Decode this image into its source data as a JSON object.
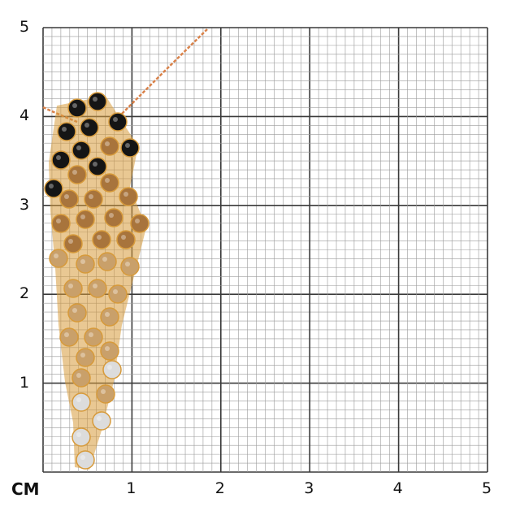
{
  "scale": {
    "unit_label": "CM",
    "x_ticks": [
      "1",
      "2",
      "3",
      "4",
      "5"
    ],
    "y_ticks": [
      "1",
      "2",
      "3",
      "4",
      "5"
    ],
    "major_per_unit": 1,
    "minor_per_unit": 10
  },
  "colors": {
    "minor_grid": "#9a9a9a",
    "major_grid": "#3a3a3a",
    "gold": "#d79a3a",
    "rose_gold": "#d9824a",
    "black_stone": "#151515",
    "cognac_stone": "#a8743c",
    "champagne_stone": "#c9a06a",
    "white_stone": "#dcdcdc"
  },
  "subject": {
    "item": "pendant",
    "stone_groups": [
      "black",
      "cognac",
      "champagne",
      "white"
    ]
  }
}
